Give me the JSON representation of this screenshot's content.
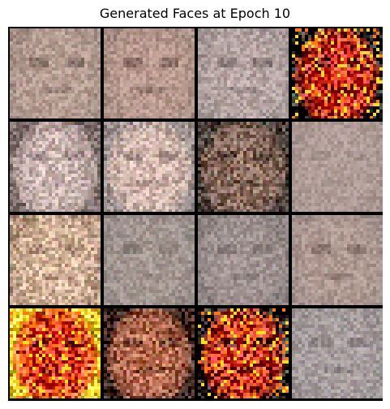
{
  "figure": {
    "title": "Generated Faces at Epoch 10"
  },
  "grid": {
    "rows": 4,
    "cols": 4,
    "tiles": [
      {
        "row": 0,
        "col": 0,
        "style": "pale",
        "base": "#a89289",
        "skin": "#b89f94",
        "feature": "#6e5a55",
        "noise": 0.22
      },
      {
        "row": 0,
        "col": 1,
        "style": "pale",
        "base": "#a88e84",
        "skin": "#ba9a8f",
        "feature": "#6c544f",
        "noise": 0.22
      },
      {
        "row": 0,
        "col": 2,
        "style": "pale",
        "base": "#a59897",
        "skin": "#b8a6a4",
        "feature": "#6f6262",
        "noise": 0.24
      },
      {
        "row": 0,
        "col": 3,
        "style": "fire",
        "base": "#000000",
        "skin": "#cc1b05",
        "feature": "#3a0000",
        "noise": 0.9
      },
      {
        "row": 1,
        "col": 0,
        "style": "pale",
        "base": "#7e6e6c",
        "skin": "#cfb9b5",
        "feature": "#8b7778",
        "noise": 0.35
      },
      {
        "row": 1,
        "col": 1,
        "style": "pale",
        "base": "#9a8e8c",
        "skin": "#d4b8ae",
        "feature": "#8a7672",
        "noise": 0.35
      },
      {
        "row": 1,
        "col": 2,
        "style": "dark",
        "base": "#4b3f39",
        "skin": "#8c6d5f",
        "feature": "#3a2a22",
        "noise": 0.45
      },
      {
        "row": 1,
        "col": 3,
        "style": "pale",
        "base": "#a89590",
        "skin": "#b29e99",
        "feature": "#998884",
        "noise": 0.15
      },
      {
        "row": 2,
        "col": 0,
        "style": "warm",
        "base": "#b89a84",
        "skin": "#d6b69d",
        "feature": "#9e7d6b",
        "noise": 0.42
      },
      {
        "row": 2,
        "col": 1,
        "style": "pale",
        "base": "#9a8f8c",
        "skin": "#a59892",
        "feature": "#7b6f6a",
        "noise": 0.2
      },
      {
        "row": 2,
        "col": 2,
        "style": "pale",
        "base": "#8c8281",
        "skin": "#a39594",
        "feature": "#6f6463",
        "noise": 0.2
      },
      {
        "row": 2,
        "col": 3,
        "style": "pale",
        "base": "#a2908b",
        "skin": "#b09a92",
        "feature": "#73605b",
        "noise": 0.18
      },
      {
        "row": 3,
        "col": 0,
        "style": "fire",
        "base": "#f6d62c",
        "skin": "#d62306",
        "feature": "#3a0500",
        "noise": 0.85
      },
      {
        "row": 3,
        "col": 1,
        "style": "warm",
        "base": "#3c241a",
        "skin": "#b96d52",
        "feature": "#4f2b1c",
        "noise": 0.55
      },
      {
        "row": 3,
        "col": 2,
        "style": "fire",
        "base": "#120300",
        "skin": "#c52208",
        "feature": "#180000",
        "noise": 0.9
      },
      {
        "row": 3,
        "col": 3,
        "style": "pale",
        "base": "#9d9596",
        "skin": "#a89e9f",
        "feature": "#7a7071",
        "noise": 0.22
      }
    ]
  }
}
